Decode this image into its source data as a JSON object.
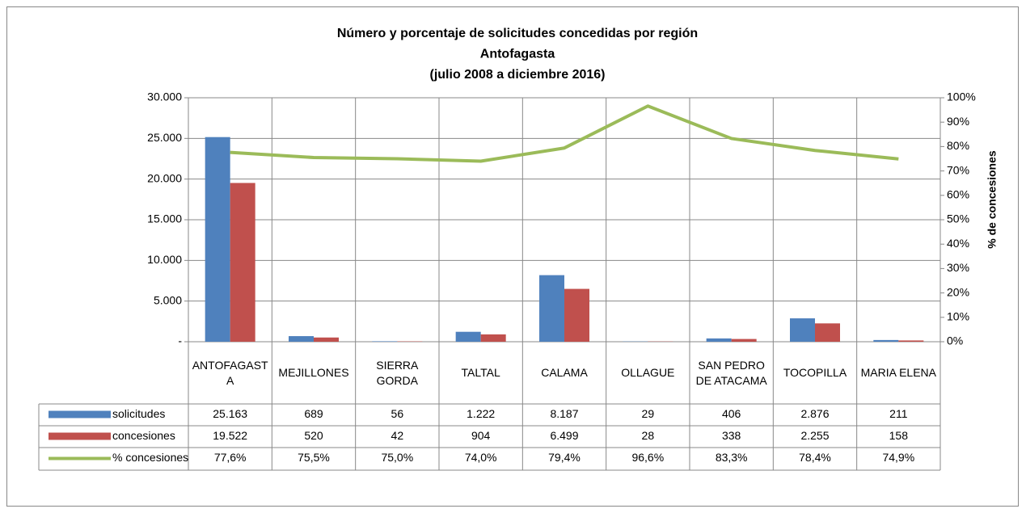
{
  "chart_data": {
    "type": "bar-line",
    "title": [
      "Número y porcentaje de solicitudes concedidas por región",
      "Antofagasta",
      "(julio 2008 a diciembre 2016)"
    ],
    "y2_label": "% de concesiones",
    "categories": [
      "ANTOFAGASTA",
      "MEJILLONES",
      "SIERRA GORDA",
      "TALTAL",
      "CALAMA",
      "OLLAGUE",
      "SAN PEDRO DE ATACAMA",
      "TOCOPILLA",
      "MARIA ELENA"
    ],
    "series": [
      {
        "name": "solicitudes",
        "type": "bar",
        "color": "#4f81bd",
        "values": [
          25163,
          689,
          56,
          1222,
          8187,
          29,
          406,
          2876,
          211
        ],
        "value_labels": [
          "25.163",
          "689",
          "56",
          "1.222",
          "8.187",
          "29",
          "406",
          "2.876",
          "211"
        ]
      },
      {
        "name": "concesiones",
        "type": "bar",
        "color": "#c0504d",
        "values": [
          19522,
          520,
          42,
          904,
          6499,
          28,
          338,
          2255,
          158
        ],
        "value_labels": [
          "19.522",
          "520",
          "42",
          "904",
          "6.499",
          "28",
          "338",
          "2.255",
          "158"
        ]
      },
      {
        "name": "% concesiones",
        "type": "line",
        "axis": "y2",
        "color": "#9bbb59",
        "values": [
          77.6,
          75.5,
          75.0,
          74.0,
          79.4,
          96.6,
          83.3,
          78.4,
          74.9
        ],
        "value_labels": [
          "77,6%",
          "75,5%",
          "75,0%",
          "74,0%",
          "79,4%",
          "96,6%",
          "83,3%",
          "78,4%",
          "74,9%"
        ]
      }
    ],
    "ylim": [
      0,
      30000
    ],
    "yticks": [
      {
        "value": 0,
        "label": "-"
      },
      {
        "value": 5000,
        "label": "5.000"
      },
      {
        "value": 10000,
        "label": "10.000"
      },
      {
        "value": 15000,
        "label": "15.000"
      },
      {
        "value": 20000,
        "label": "20.000"
      },
      {
        "value": 25000,
        "label": "25.000"
      },
      {
        "value": 30000,
        "label": "30.000"
      }
    ],
    "y2lim": [
      0,
      100
    ],
    "y2ticks": [
      {
        "value": 0,
        "label": "0%"
      },
      {
        "value": 10,
        "label": "10%"
      },
      {
        "value": 20,
        "label": "20%"
      },
      {
        "value": 30,
        "label": "30%"
      },
      {
        "value": 40,
        "label": "40%"
      },
      {
        "value": 50,
        "label": "50%"
      },
      {
        "value": 60,
        "label": "60%"
      },
      {
        "value": 70,
        "label": "70%"
      },
      {
        "value": 80,
        "label": "80%"
      },
      {
        "value": 90,
        "label": "90%"
      },
      {
        "value": 100,
        "label": "100%"
      }
    ],
    "grid": true
  }
}
